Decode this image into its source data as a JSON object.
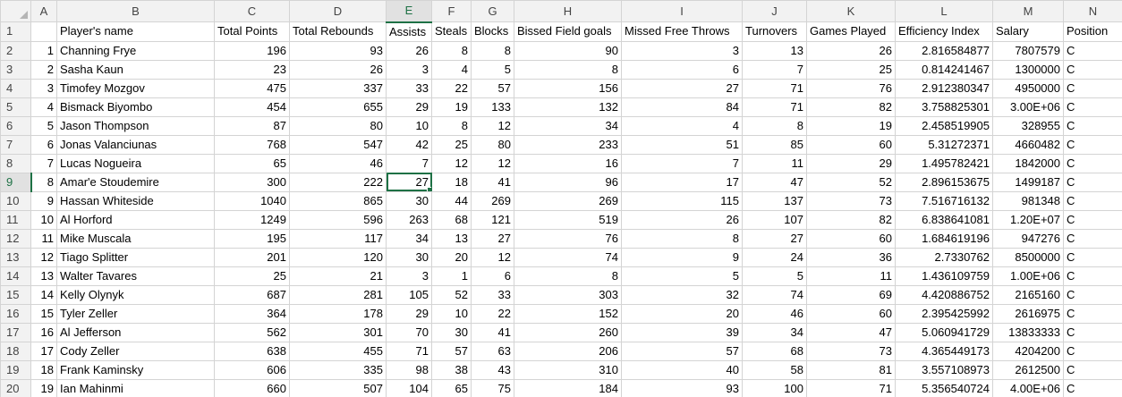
{
  "columns": [
    "A",
    "B",
    "C",
    "D",
    "E",
    "F",
    "G",
    "H",
    "I",
    "J",
    "K",
    "L",
    "M",
    "N"
  ],
  "selected_column": "E",
  "selected_row": "9",
  "active_cell": {
    "row": 9,
    "col": "E"
  },
  "rows": [
    {
      "n": "1",
      "cells": [
        "",
        "Player's name",
        "Total Points",
        "Total Rebounds",
        "Assists",
        "Steals",
        "Blocks",
        "Bissed Field goals",
        "Missed Free Throws",
        "Turnovers",
        "Games Played",
        "Efficiency Index",
        "Salary",
        "Position"
      ]
    },
    {
      "n": "2",
      "cells": [
        "1",
        "Channing Frye",
        "196",
        "93",
        "26",
        "8",
        "8",
        "90",
        "3",
        "13",
        "26",
        "2.816584877",
        "7807579",
        "C"
      ]
    },
    {
      "n": "3",
      "cells": [
        "2",
        "Sasha Kaun",
        "23",
        "26",
        "3",
        "4",
        "5",
        "8",
        "6",
        "7",
        "25",
        "0.814241467",
        "1300000",
        "C"
      ]
    },
    {
      "n": "4",
      "cells": [
        "3",
        "Timofey Mozgov",
        "475",
        "337",
        "33",
        "22",
        "57",
        "156",
        "27",
        "71",
        "76",
        "2.912380347",
        "4950000",
        "C"
      ]
    },
    {
      "n": "5",
      "cells": [
        "4",
        "Bismack Biyombo",
        "454",
        "655",
        "29",
        "19",
        "133",
        "132",
        "84",
        "71",
        "82",
        "3.758825301",
        "3.00E+06",
        "C"
      ]
    },
    {
      "n": "6",
      "cells": [
        "5",
        "Jason Thompson",
        "87",
        "80",
        "10",
        "8",
        "12",
        "34",
        "4",
        "8",
        "19",
        "2.458519905",
        "328955",
        "C"
      ]
    },
    {
      "n": "7",
      "cells": [
        "6",
        "Jonas Valanciunas",
        "768",
        "547",
        "42",
        "25",
        "80",
        "233",
        "51",
        "85",
        "60",
        "5.31272371",
        "4660482",
        "C"
      ]
    },
    {
      "n": "8",
      "cells": [
        "7",
        "Lucas Nogueira",
        "65",
        "46",
        "7",
        "12",
        "12",
        "16",
        "7",
        "11",
        "29",
        "1.495782421",
        "1842000",
        "C"
      ]
    },
    {
      "n": "9",
      "cells": [
        "8",
        "Amar'e Stoudemire",
        "300",
        "222",
        "27",
        "18",
        "41",
        "96",
        "17",
        "47",
        "52",
        "2.896153675",
        "1499187",
        "C"
      ]
    },
    {
      "n": "10",
      "cells": [
        "9",
        "Hassan Whiteside",
        "1040",
        "865",
        "30",
        "44",
        "269",
        "269",
        "115",
        "137",
        "73",
        "7.516716132",
        "981348",
        "C"
      ]
    },
    {
      "n": "11",
      "cells": [
        "10",
        "Al Horford",
        "1249",
        "596",
        "263",
        "68",
        "121",
        "519",
        "26",
        "107",
        "82",
        "6.838641081",
        "1.20E+07",
        "C"
      ]
    },
    {
      "n": "12",
      "cells": [
        "11",
        "Mike Muscala",
        "195",
        "117",
        "34",
        "13",
        "27",
        "76",
        "8",
        "27",
        "60",
        "1.684619196",
        "947276",
        "C"
      ]
    },
    {
      "n": "13",
      "cells": [
        "12",
        "Tiago Splitter",
        "201",
        "120",
        "30",
        "20",
        "12",
        "74",
        "9",
        "24",
        "36",
        "2.7330762",
        "8500000",
        "C"
      ]
    },
    {
      "n": "14",
      "cells": [
        "13",
        "Walter Tavares",
        "25",
        "21",
        "3",
        "1",
        "6",
        "8",
        "5",
        "5",
        "11",
        "1.436109759",
        "1.00E+06",
        "C"
      ]
    },
    {
      "n": "15",
      "cells": [
        "14",
        "Kelly Olynyk",
        "687",
        "281",
        "105",
        "52",
        "33",
        "303",
        "32",
        "74",
        "69",
        "4.420886752",
        "2165160",
        "C"
      ]
    },
    {
      "n": "16",
      "cells": [
        "15",
        "Tyler Zeller",
        "364",
        "178",
        "29",
        "10",
        "22",
        "152",
        "20",
        "46",
        "60",
        "2.395425992",
        "2616975",
        "C"
      ]
    },
    {
      "n": "17",
      "cells": [
        "16",
        "Al Jefferson",
        "562",
        "301",
        "70",
        "30",
        "41",
        "260",
        "39",
        "34",
        "47",
        "5.060941729",
        "13833333",
        "C"
      ]
    },
    {
      "n": "18",
      "cells": [
        "17",
        "Cody Zeller",
        "638",
        "455",
        "71",
        "57",
        "63",
        "206",
        "57",
        "68",
        "73",
        "4.365449173",
        "4204200",
        "C"
      ]
    },
    {
      "n": "19",
      "cells": [
        "18",
        "Frank Kaminsky",
        "606",
        "335",
        "98",
        "38",
        "43",
        "310",
        "40",
        "58",
        "81",
        "3.557108973",
        "2612500",
        "C"
      ]
    },
    {
      "n": "20",
      "cells": [
        "19",
        "Ian Mahinmi",
        "660",
        "507",
        "104",
        "65",
        "75",
        "184",
        "93",
        "100",
        "71",
        "5.356540724",
        "4.00E+06",
        "C"
      ]
    }
  ]
}
